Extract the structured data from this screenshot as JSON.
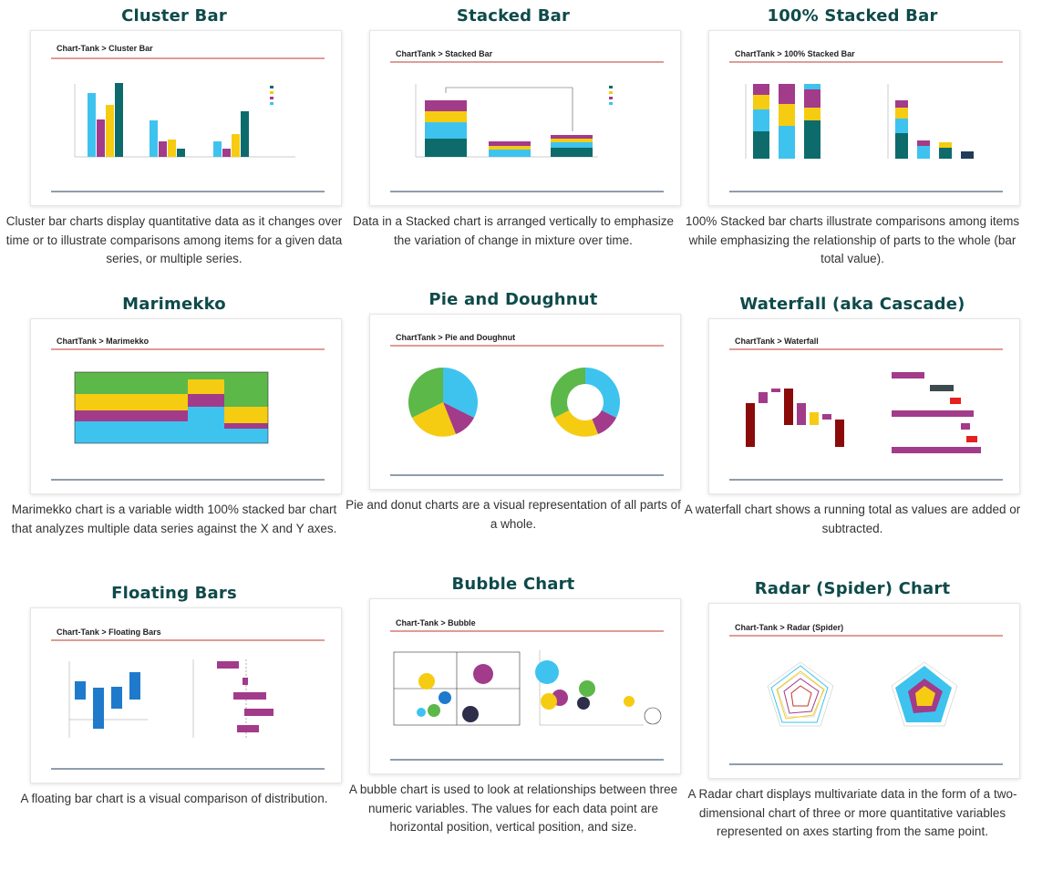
{
  "cards": [
    {
      "title": "Cluster Bar",
      "breadcrumb": "Chart-Tank  >  Cluster Bar",
      "description": "Cluster bar charts display quantitative data as it changes over time or to illustrate comparisons among items for a given data series, or multiple series."
    },
    {
      "title": "Stacked Bar",
      "breadcrumb": "ChartTank > Stacked Bar",
      "description": "Data in a Stacked chart is arranged vertically to emphasize the variation of change in mixture over time."
    },
    {
      "title": "100% Stacked Bar",
      "breadcrumb": "ChartTank > 100% Stacked Bar",
      "description": "100% Stacked bar charts illustrate comparisons among items while emphasizing the relationship of parts to the whole (bar total value)."
    },
    {
      "title": "Marimekko",
      "breadcrumb": "ChartTank > Marimekko",
      "description": "Marimekko chart is a variable width 100% stacked bar chart that analyzes multiple data series against the X and Y axes."
    },
    {
      "title": "Pie and Doughnut",
      "breadcrumb": "ChartTank > Pie and Doughnut",
      "description": "Pie and donut charts are a visual representation of all parts of a whole."
    },
    {
      "title": "Waterfall (aka Cascade)",
      "breadcrumb": "ChartTank > Waterfall",
      "description": "A waterfall chart shows a running total as values are added or subtracted."
    },
    {
      "title": "Floating Bars",
      "breadcrumb": "Chart-Tank  >  Floating Bars",
      "description": "A floating bar chart is a visual comparison of distribution."
    },
    {
      "title": "Bubble Chart",
      "breadcrumb": "Chart-Tank  >  Bubble",
      "description": "A bubble chart is used to look at relationships between three numeric variables. The values for each data point are horizontal position, vertical position, and size."
    },
    {
      "title": "Radar (Spider) Chart",
      "breadcrumb": "Chart-Tank  >  Radar (Spider)",
      "description": "A Radar chart displays multivariate data in the form of a two-dimensional chart of three or more quantitative variables represented on axes starting from the same point."
    }
  ],
  "colors": {
    "title": "#0f4a4a",
    "accent_line": "#c0392b",
    "teal": "#0e6b6b",
    "magenta": "#a23b8a",
    "yellow": "#f5cc12",
    "cyan": "#3ec3ef",
    "green": "#5bb849",
    "darkred": "#8b0a0a",
    "navy": "#1f3b5a"
  }
}
